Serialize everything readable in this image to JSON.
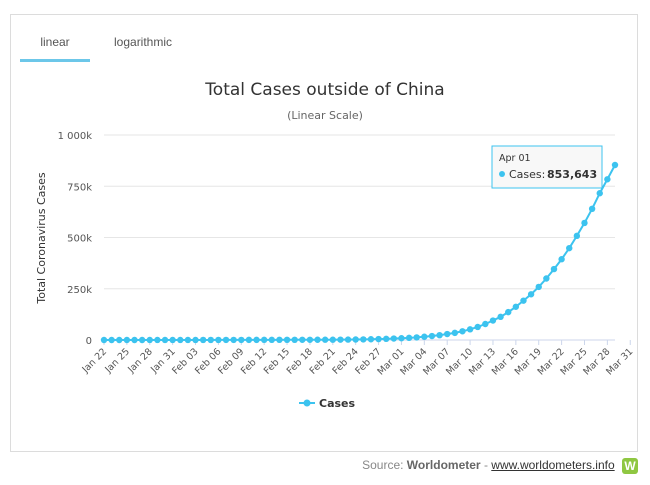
{
  "tabs": {
    "linear": "linear",
    "logarithmic": "logarithmic"
  },
  "chart_data": {
    "type": "line",
    "title": "Total Cases outside of China",
    "subtitle": "(Linear Scale)",
    "ylabel": "Total Coronavirus Cases",
    "xlabel": "",
    "ylim": [
      0,
      1000000
    ],
    "yticks": [
      0,
      250000,
      500000,
      750000,
      1000000
    ],
    "ytick_labels": [
      "0",
      "250k",
      "500k",
      "750k",
      "1 000k"
    ],
    "xtick_labels": [
      "Jan 22",
      "Jan 25",
      "Jan 28",
      "Jan 31",
      "Feb 03",
      "Feb 06",
      "Feb 09",
      "Feb 12",
      "Feb 15",
      "Feb 18",
      "Feb 21",
      "Feb 24",
      "Feb 27",
      "Mar 01",
      "Mar 04",
      "Mar 07",
      "Mar 10",
      "Mar 13",
      "Mar 16",
      "Mar 19",
      "Mar 22",
      "Mar 25",
      "Mar 28",
      "Mar 31"
    ],
    "series": [
      {
        "name": "Cases",
        "color": "#3cc3ef",
        "values": [
          6,
          13,
          24,
          30,
          44,
          56,
          79,
          97,
          129,
          138,
          162,
          203,
          208,
          253,
          289,
          351,
          423,
          488,
          536,
          599,
          625,
          693,
          795,
          902,
          917,
          971,
          1050,
          1150,
          1200,
          1300,
          1400,
          1650,
          2050,
          2450,
          2900,
          3700,
          4600,
          5700,
          7100,
          8700,
          10600,
          12600,
          15800,
          19400,
          23500,
          29100,
          34800,
          42500,
          52000,
          63500,
          78000,
          95000,
          113000,
          136000,
          162000,
          192000,
          223000,
          259000,
          300000,
          346000,
          394000,
          448000,
          508000,
          571000,
          640000,
          716000,
          784000,
          853643
        ]
      }
    ],
    "tooltip": {
      "date": "Apr 01",
      "series_label": "Cases:",
      "value_text": "853,643",
      "index": 70
    },
    "legend": {
      "label": "Cases",
      "position": "bottom"
    }
  },
  "source": {
    "prefix": "Source:",
    "name": "Worldometer",
    "sep": "-",
    "link": "www.worldometers.info",
    "logo_letter": "W"
  }
}
